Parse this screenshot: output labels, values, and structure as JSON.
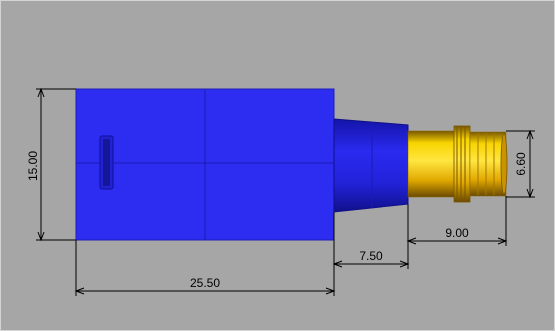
{
  "colors": {
    "viewport_background": "#a6a6a6",
    "body_fill": "#2d2df2",
    "body_edge": "#1d1db8",
    "connector_gold": "#f2c200",
    "connector_shadow": "#a67800",
    "dimension_line": "#000000"
  },
  "dimensions": {
    "height_left": "15.00",
    "length_body": "25.50",
    "length_taper": "7.50",
    "length_connector": "9.00",
    "diameter_connector": "6.60"
  }
}
